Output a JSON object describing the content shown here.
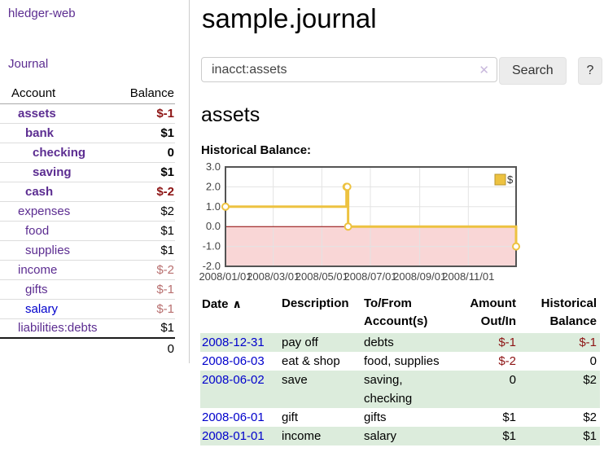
{
  "colors": {
    "link_purple": "#5c2d91",
    "link_blue": "#0000cc",
    "negative_strong": "#8d1414",
    "negative_soft": "#b86f6f",
    "stripe_green": "#dcecdc",
    "series_yellow": "#edc240"
  },
  "sidebar": {
    "brand": "hledger-web",
    "journal_label": "Journal",
    "accounts": {
      "header_account": "Account",
      "header_balance": "Balance",
      "rows": [
        {
          "name": "assets",
          "indent": 1,
          "bold": true,
          "balance": "$-1",
          "balance_class": "neg-strong"
        },
        {
          "name": "bank",
          "indent": 2,
          "bold": true,
          "balance": "$1",
          "balance_class": ""
        },
        {
          "name": "checking",
          "indent": 3,
          "bold": true,
          "balance": "0",
          "balance_class": ""
        },
        {
          "name": "saving",
          "indent": 3,
          "bold": true,
          "balance": "$1",
          "balance_class": ""
        },
        {
          "name": "cash",
          "indent": 2,
          "bold": true,
          "balance": "$-2",
          "balance_class": "neg-strong"
        },
        {
          "name": "expenses",
          "indent": 1,
          "bold": false,
          "balance": "$2",
          "balance_class": ""
        },
        {
          "name": "food",
          "indent": 2,
          "bold": false,
          "balance": "$1",
          "balance_class": ""
        },
        {
          "name": "supplies",
          "indent": 2,
          "bold": false,
          "balance": "$1",
          "balance_class": ""
        },
        {
          "name": "income",
          "indent": 1,
          "bold": false,
          "balance": "$-2",
          "balance_class": "neg-soft"
        },
        {
          "name": "gifts",
          "indent": 2,
          "bold": false,
          "balance": "$-1",
          "balance_class": "neg-soft"
        },
        {
          "name": "salary",
          "indent": 2,
          "bold": false,
          "link_color": "blue",
          "balance": "$-1",
          "balance_class": "neg-soft"
        },
        {
          "name": "liabilities:debts",
          "indent": 1,
          "bold": false,
          "balance": "$1",
          "balance_class": ""
        }
      ],
      "total": "0"
    }
  },
  "main": {
    "title": "sample.journal",
    "search": {
      "value": "inacct:assets",
      "clear_icon": "✕",
      "button_label": "Search",
      "help_label": "?"
    },
    "account_heading": "assets",
    "chart_label": "Historical Balance:"
  },
  "chart_data": {
    "type": "line",
    "subtype": "step",
    "title": "Historical Balance of assets",
    "series": [
      {
        "name": "$",
        "color": "#edc240",
        "points": [
          [
            "2008-01-01",
            1
          ],
          [
            "2008-06-01",
            2
          ],
          [
            "2008-06-02",
            2
          ],
          [
            "2008-06-03",
            0
          ],
          [
            "2008-12-31",
            -1
          ]
        ]
      }
    ],
    "xrange": [
      "2008-01-01",
      "2008-12-31"
    ],
    "ylim": [
      -2,
      3
    ],
    "yticks": [
      3,
      2,
      1,
      0,
      -1,
      -2
    ],
    "ytick_labels": [
      "3.0",
      "2.0",
      "1.0",
      "0.0",
      "-1.0",
      "-2.0"
    ],
    "xticks": [
      "2008-01-01",
      "2008-03-01",
      "2008-05-01",
      "2008-07-01",
      "2008-09-01",
      "2008-11-01"
    ],
    "xtick_labels": [
      "2008/01/01",
      "2008/03/01",
      "2008/05/01",
      "2008/07/01",
      "2008/09/01",
      "2008/11/01"
    ],
    "legend": {
      "label": "$",
      "position": "top-right"
    },
    "grid": true,
    "negative_region_color": "#f9d6d6",
    "zero_line_color": "#8b0000",
    "border_color": "#545454",
    "gridline_color": "#e3e3e3"
  },
  "register": {
    "headers": {
      "date": "Date",
      "sort_icon": "∧",
      "description": "Description",
      "accounts": "To/From Account(s)",
      "amount": "Amount Out/In",
      "balance": "Historical Balance"
    },
    "rows": [
      {
        "date": "2008-12-31",
        "description": "pay off",
        "accounts": "debts",
        "amount": "$-1",
        "amount_negative": true,
        "balance": "$-1",
        "balance_negative": true,
        "stripe": true
      },
      {
        "date": "2008-06-03",
        "description": "eat & shop",
        "accounts": "food, supplies",
        "amount": "$-2",
        "amount_negative": true,
        "balance": "0",
        "balance_negative": false,
        "stripe": false
      },
      {
        "date": "2008-06-02",
        "description": "save",
        "accounts": "saving, checking",
        "amount": "0",
        "amount_negative": false,
        "balance": "$2",
        "balance_negative": false,
        "stripe": true
      },
      {
        "date": "2008-06-01",
        "description": "gift",
        "accounts": "gifts",
        "amount": "$1",
        "amount_negative": false,
        "balance": "$2",
        "balance_negative": false,
        "stripe": false
      },
      {
        "date": "2008-01-01",
        "description": "income",
        "accounts": "salary",
        "amount": "$1",
        "amount_negative": false,
        "balance": "$1",
        "balance_negative": false,
        "stripe": true
      }
    ]
  }
}
